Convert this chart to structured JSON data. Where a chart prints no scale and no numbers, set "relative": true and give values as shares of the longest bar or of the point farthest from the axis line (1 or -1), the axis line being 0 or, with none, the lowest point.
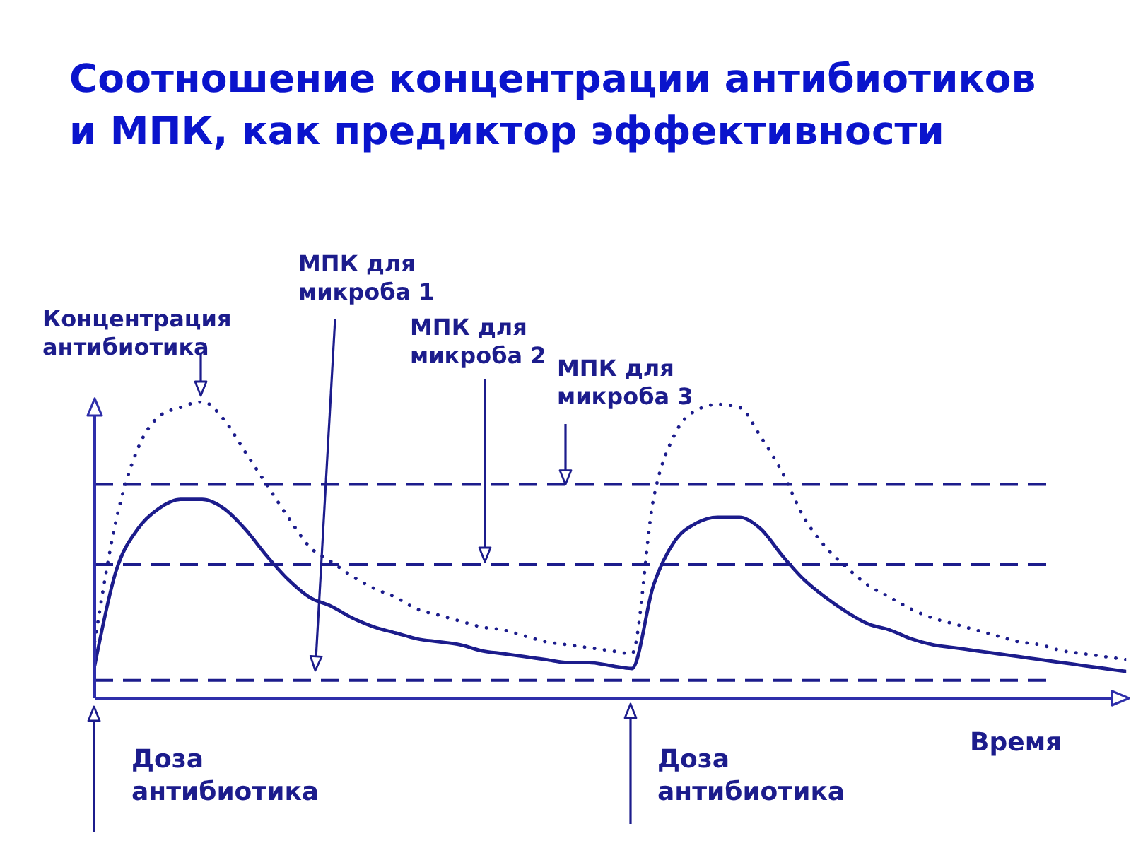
{
  "chart_data": {
    "type": "line",
    "title": "Соотношение концентрации антибиотиков и МПК, как предиктор эффективности",
    "xlabel": "Время",
    "ylabel": "Концентрация антибиотика",
    "annotations": [
      "Доза антибиотика",
      "Доза антибиотика"
    ],
    "relative": true,
    "marker": "none",
    "categories": [
      null,
      null,
      null,
      null,
      null,
      null,
      null,
      null,
      null,
      null,
      null,
      null,
      null,
      null,
      null,
      null,
      null,
      null,
      null,
      null,
      null,
      null,
      null,
      null,
      null,
      null,
      null,
      null,
      null,
      null,
      null,
      null,
      null,
      null,
      null,
      null,
      null,
      null,
      null,
      null,
      null,
      null,
      null,
      null,
      null,
      null,
      null,
      null,
      null
    ],
    "series": [
      {
        "color": "#1c1c8c",
        "line_style": "dotted",
        "values": [
          0.19,
          0.6,
          0.84,
          0.95,
          0.98,
          1.0,
          0.94,
          0.83,
          0.72,
          0.61,
          0.51,
          0.46,
          0.41,
          0.37,
          0.34,
          0.3,
          0.28,
          0.26,
          0.24,
          0.23,
          0.21,
          0.19,
          0.18,
          0.17,
          0.16,
          0.15,
          0.67,
          0.89,
          0.97,
          0.99,
          0.98,
          0.88,
          0.76,
          0.61,
          0.51,
          0.44,
          0.38,
          0.34,
          0.3,
          0.27,
          0.25,
          0.23,
          0.21,
          0.19,
          0.18,
          0.16,
          0.15,
          0.14,
          0.13
        ]
      },
      {
        "color": "#1c1c8c",
        "line_style": "solid",
        "values": [
          0.11,
          0.43,
          0.57,
          0.64,
          0.67,
          0.67,
          0.64,
          0.57,
          0.48,
          0.4,
          0.34,
          0.31,
          0.27,
          0.24,
          0.22,
          0.2,
          0.19,
          0.18,
          0.16,
          0.15,
          0.14,
          0.13,
          0.12,
          0.12,
          0.11,
          0.1,
          0.38,
          0.53,
          0.59,
          0.61,
          0.61,
          0.57,
          0.48,
          0.4,
          0.34,
          0.29,
          0.25,
          0.23,
          0.2,
          0.18,
          0.17,
          0.16,
          0.15,
          0.14,
          0.13,
          0.12,
          0.11,
          0.1,
          0.09
        ]
      }
    ],
    "ref_lines": [
      {
        "axis": "y",
        "value": 0.06,
        "label": "МПК для микроба 1",
        "line_style": "dashed",
        "color": "#1c1c8c"
      },
      {
        "axis": "y",
        "value": 0.45,
        "label": "МПК для микроба 2",
        "line_style": "dashed",
        "color": "#1c1c8c"
      },
      {
        "axis": "y",
        "value": 0.72,
        "label": "МПК для микроба 3",
        "line_style": "dashed",
        "color": "#1c1c8c"
      }
    ]
  }
}
